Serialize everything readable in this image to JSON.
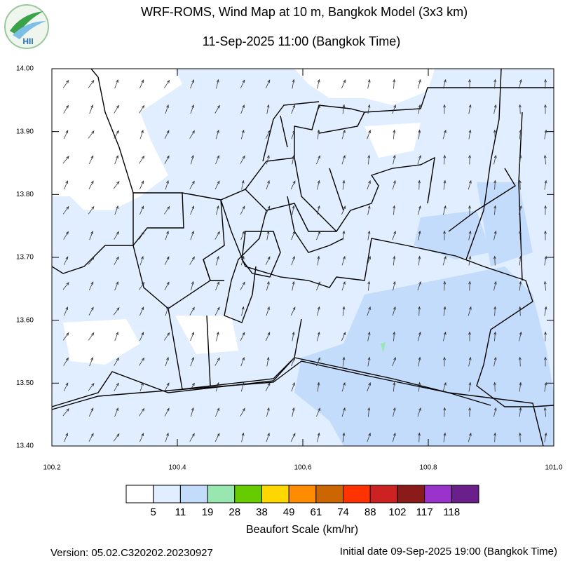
{
  "logo": {
    "text": "HII"
  },
  "chart_data": {
    "type": "map",
    "title": "WRF-ROMS, Wind Map at 10 m, Bangkok Model (3x3 km)",
    "subtitle": "11-Sep-2025 11:00 (Bangkok Time)",
    "xlim": [
      100.2,
      101.0
    ],
    "ylim": [
      13.4,
      14.0
    ],
    "xticks": [
      100.2,
      100.4,
      100.6,
      100.8,
      {
        "value": 101.0,
        "label": "101.0"
      }
    ],
    "yticks": [
      {
        "value": 13.4,
        "label": "13.40"
      },
      {
        "value": 13.5,
        "label": "13.50"
      },
      {
        "value": 13.6,
        "label": "13.60"
      },
      {
        "value": 13.7,
        "label": "13.70"
      },
      {
        "value": 13.8,
        "label": "13.80"
      },
      {
        "value": 13.9,
        "label": "13.90"
      },
      {
        "value": 14.0,
        "label": "14.00"
      }
    ]
  },
  "colorbar": {
    "title": "Beaufort Scale (km/hr)",
    "colors": [
      "#ffffff",
      "#e0eeff",
      "#c4dcfc",
      "#98e6b0",
      "#66cc00",
      "#ffd700",
      "#ff8c00",
      "#cc6600",
      "#ff3300",
      "#cc2222",
      "#8b1a1a",
      "#9933cc",
      "#6a1f8a"
    ],
    "labels": [
      5,
      11,
      19,
      28,
      38,
      49,
      61,
      74,
      88,
      102,
      117,
      118
    ]
  },
  "footer": {
    "version": "Version: 05.02.C320202.20230927",
    "initial_date": "Initial date 09-Sep-2025 19:00 (Bangkok Time)"
  }
}
